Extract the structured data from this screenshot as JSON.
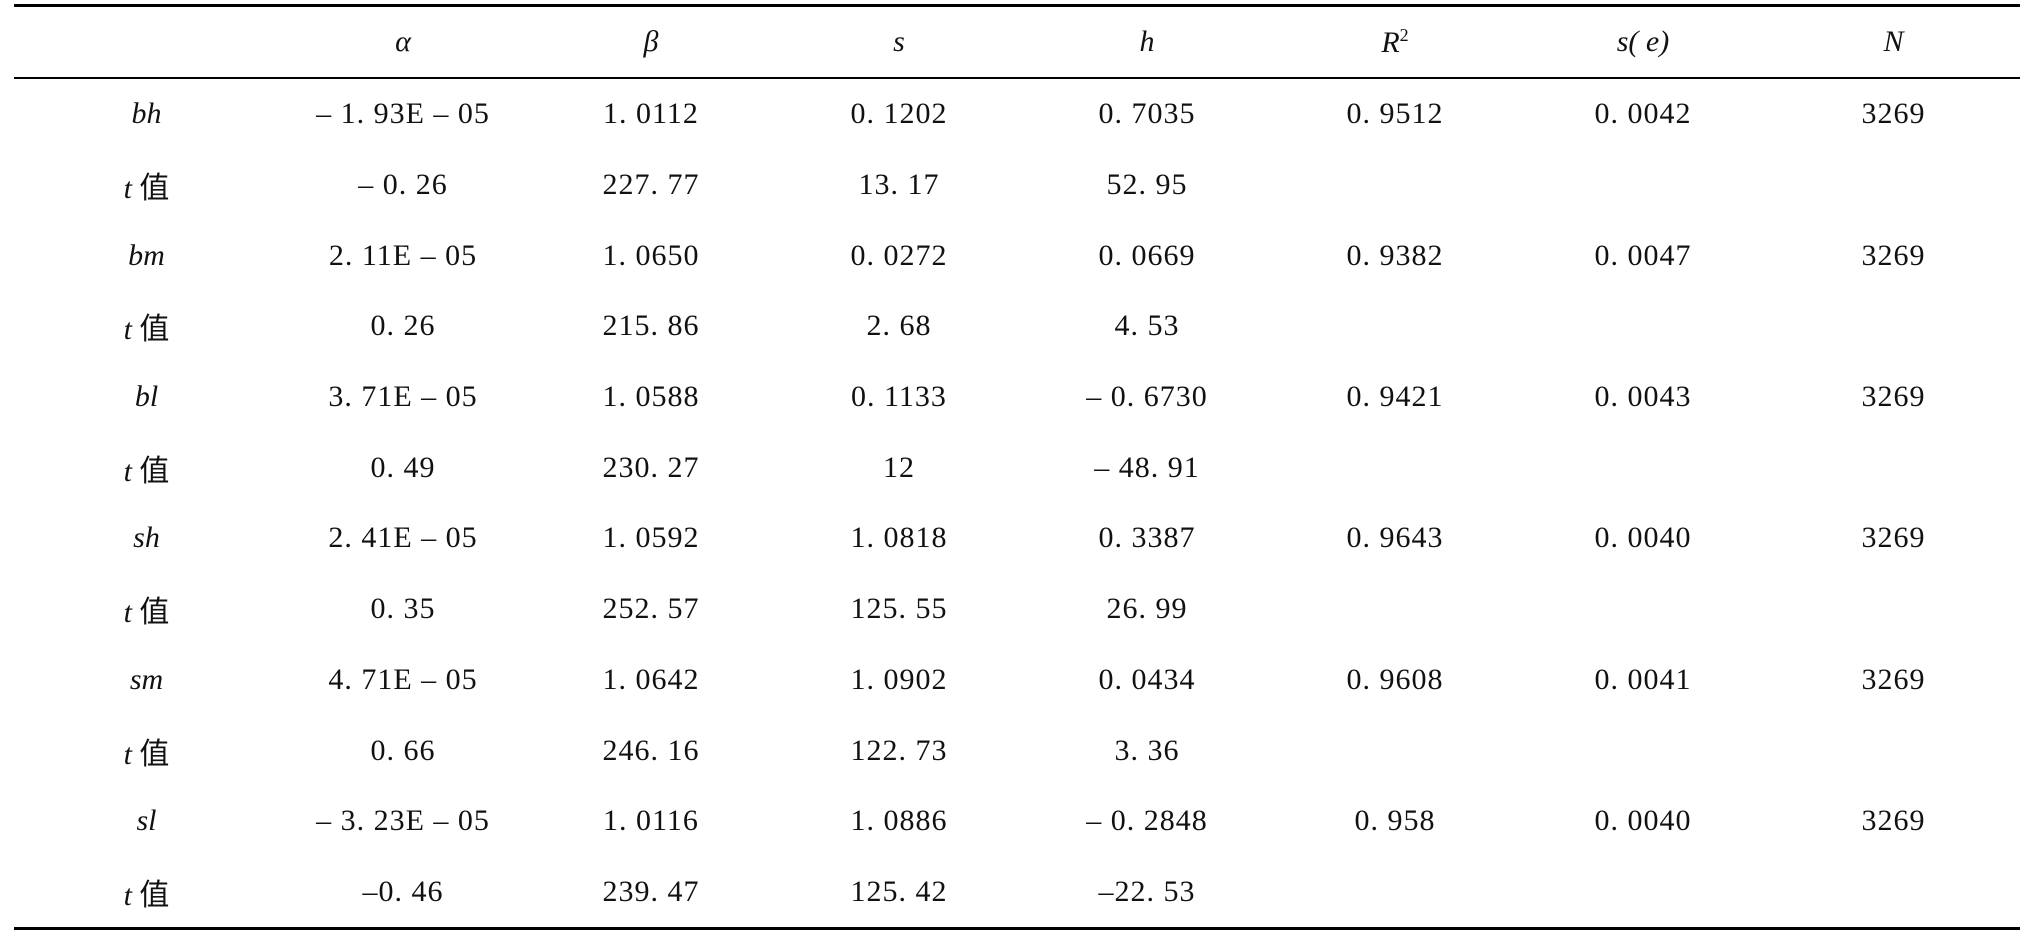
{
  "headers": {
    "alpha": "α",
    "beta": "β",
    "s": "s",
    "h": "h",
    "r2_base": "R",
    "r2_sup": "2",
    "se": "s( e)",
    "n": "N"
  },
  "rows": [
    {
      "label": "bh",
      "alpha": "– 1. 93E – 05",
      "beta": "1. 0112",
      "s": "0. 1202",
      "h": "0. 7035",
      "r2": "0. 9512",
      "se": "0. 0042",
      "n": "3269"
    },
    {
      "label": "t",
      "suffix": "值",
      "alpha": "– 0. 26",
      "beta": "227. 77",
      "s": "13. 17",
      "h": "52. 95",
      "r2": "",
      "se": "",
      "n": ""
    },
    {
      "label": "bm",
      "alpha": "2. 11E – 05",
      "beta": "1. 0650",
      "s": "0. 0272",
      "h": "0. 0669",
      "r2": "0. 9382",
      "se": "0. 0047",
      "n": "3269"
    },
    {
      "label": "t",
      "suffix": "值",
      "alpha": "0. 26",
      "beta": "215. 86",
      "s": "2. 68",
      "h": "4. 53",
      "r2": "",
      "se": "",
      "n": ""
    },
    {
      "label": "bl",
      "alpha": "3. 71E – 05",
      "beta": "1. 0588",
      "s": "0. 1133",
      "h": "– 0. 6730",
      "r2": "0. 9421",
      "se": "0. 0043",
      "n": "3269"
    },
    {
      "label": "t",
      "suffix": "值",
      "alpha": "0. 49",
      "beta": "230. 27",
      "s": "12",
      "h": "– 48. 91",
      "r2": "",
      "se": "",
      "n": ""
    },
    {
      "label": "sh",
      "alpha": "2. 41E – 05",
      "beta": "1. 0592",
      "s": "1. 0818",
      "h": "0. 3387",
      "r2": "0. 9643",
      "se": "0. 0040",
      "n": "3269"
    },
    {
      "label": "t",
      "suffix": "值",
      "alpha": "0. 35",
      "beta": "252. 57",
      "s": "125. 55",
      "h": "26. 99",
      "r2": "",
      "se": "",
      "n": ""
    },
    {
      "label": "sm",
      "alpha": "4. 71E – 05",
      "beta": "1. 0642",
      "s": "1. 0902",
      "h": "0. 0434",
      "r2": "0. 9608",
      "se": "0. 0041",
      "n": "3269"
    },
    {
      "label": "t",
      "suffix": "值",
      "alpha": "0. 66",
      "beta": "246. 16",
      "s": "122. 73",
      "h": "3. 36",
      "r2": "",
      "se": "",
      "n": ""
    },
    {
      "label": "sl",
      "alpha": "– 3. 23E – 05",
      "beta": "1. 0116",
      "s": "1. 0886",
      "h": "– 0. 2848",
      "r2": "0. 958",
      "se": "0. 0040",
      "n": "3269"
    },
    {
      "label": "t",
      "suffix": "值",
      "alpha": "–0. 46",
      "beta": "239. 47",
      "s": "125. 42",
      "h": "–22. 53",
      "r2": "",
      "se": "",
      "n": ""
    }
  ]
}
